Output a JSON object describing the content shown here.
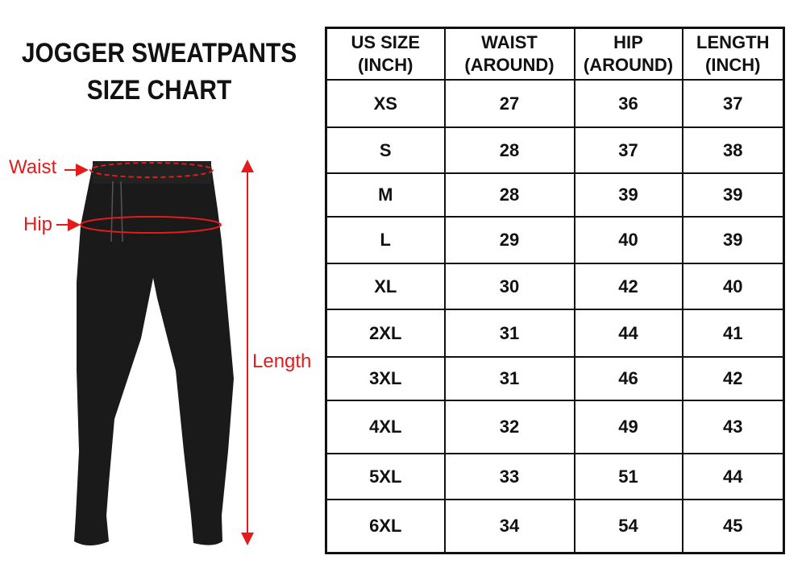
{
  "title": {
    "line1": "JOGGER SWEATPANTS",
    "line2": "SIZE CHART"
  },
  "labels": {
    "waist": "Waist",
    "hip": "Hip",
    "length": "Length"
  },
  "accent_color": "#e31b1b",
  "table": {
    "headers": [
      {
        "line1": "US SIZE",
        "line2": "(INCH)"
      },
      {
        "line1": "WAIST",
        "line2": "(AROUND)"
      },
      {
        "line1": "HIP",
        "line2": "(AROUND)"
      },
      {
        "line1": "LENGTH",
        "line2": "(INCH)"
      }
    ],
    "rows": [
      [
        "XS",
        "27",
        "36",
        "37"
      ],
      [
        "S",
        "28",
        "37",
        "38"
      ],
      [
        "M",
        "28",
        "39",
        "39"
      ],
      [
        "L",
        "29",
        "40",
        "39"
      ],
      [
        "XL",
        "30",
        "42",
        "40"
      ],
      [
        "2XL",
        "31",
        "44",
        "41"
      ],
      [
        "3XL",
        "31",
        "46",
        "42"
      ],
      [
        "4XL",
        "32",
        "49",
        "43"
      ],
      [
        "5XL",
        "33",
        "51",
        "44"
      ],
      [
        "6XL",
        "34",
        "54",
        "45"
      ]
    ]
  }
}
